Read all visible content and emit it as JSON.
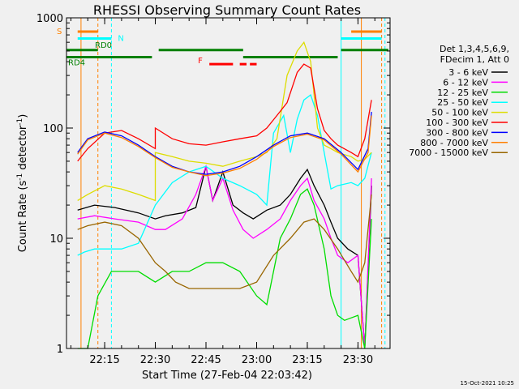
{
  "chart_data": {
    "type": "line",
    "title": "RHESSI Observing Summary Count Rates",
    "xlabel": "Start Time (27-Feb-04 22:03:42)",
    "ylabel_prefix": "Count Rate (s",
    "ylabel_exp": "-1",
    "ylabel_mid": " detector",
    "ylabel_suffix": ")",
    "y_scale": "log",
    "ylim": [
      1,
      1000
    ],
    "xlim": [
      "22:03:42",
      "23:39:30"
    ],
    "x_ticks": [
      "22:15",
      "22:30",
      "22:45",
      "23:00",
      "23:15",
      "23:30"
    ],
    "y_ticks": [
      "1",
      "10",
      "100",
      "1000"
    ],
    "grid": false,
    "info_lines": [
      "Det 1,3,4,5,6,9,",
      "FDecim 1, Att 0"
    ],
    "footer": "15-Oct-2021 10:25",
    "series": [
      {
        "name": "3 - 6 keV",
        "color": "#000000",
        "x": [
          "22:07",
          "22:12",
          "22:18",
          "22:25",
          "22:30",
          "22:33",
          "22:38",
          "22:42",
          "22:45",
          "22:47",
          "22:50",
          "22:53",
          "22:56",
          "22:59",
          "23:03",
          "23:07",
          "23:10",
          "23:13",
          "23:15",
          "23:17",
          "23:20",
          "23:22",
          "23:24",
          "23:27",
          "23:30",
          "23:32",
          "23:34"
        ],
        "values": [
          18,
          20,
          19,
          17,
          15,
          16,
          17,
          19,
          45,
          22,
          40,
          20,
          17,
          15,
          18,
          20,
          25,
          35,
          42,
          30,
          20,
          14,
          10,
          8,
          7,
          1,
          30
        ]
      },
      {
        "name": "6 - 12 keV",
        "color": "#ff00ff",
        "x": [
          "22:07",
          "22:12",
          "22:18",
          "22:25",
          "22:30",
          "22:33",
          "22:38",
          "22:42",
          "22:45",
          "22:47",
          "22:50",
          "22:53",
          "22:56",
          "22:59",
          "23:03",
          "23:07",
          "23:10",
          "23:13",
          "23:15",
          "23:17",
          "23:20",
          "23:22",
          "23:24",
          "23:27",
          "23:30",
          "23:32",
          "23:34"
        ],
        "values": [
          15,
          16,
          15,
          14,
          12,
          12,
          15,
          25,
          45,
          22,
          35,
          18,
          12,
          10,
          12,
          15,
          22,
          30,
          35,
          22,
          15,
          10,
          7,
          6,
          7,
          1,
          35
        ]
      },
      {
        "name": "12 - 25 keV",
        "color": "#00dd00",
        "x": [
          "22:07",
          "22:10",
          "22:13",
          "22:17",
          "22:25",
          "22:30",
          "22:35",
          "22:40",
          "22:45",
          "22:50",
          "22:55",
          "23:00",
          "23:03",
          "23:07",
          "23:10",
          "23:13",
          "23:15",
          "23:17",
          "23:20",
          "23:22",
          "23:24",
          "23:26",
          "23:30",
          "23:32",
          "23:34"
        ],
        "values": [
          1,
          1,
          3,
          5,
          5,
          4,
          5,
          5,
          6,
          6,
          5,
          3,
          2.5,
          10,
          15,
          25,
          28,
          20,
          8,
          3,
          2,
          1.8,
          2,
          1,
          15
        ]
      },
      {
        "name": "25 - 50 keV",
        "color": "#00ffff",
        "x": [
          "22:07",
          "22:09",
          "22:12",
          "22:15",
          "22:20",
          "22:25",
          "22:30",
          "22:35",
          "22:40",
          "22:45",
          "22:50",
          "22:55",
          "23:00",
          "23:03",
          "23:05",
          "23:08",
          "23:10",
          "23:12",
          "23:14",
          "23:16",
          "23:18",
          "23:20",
          "23:22",
          "23:24",
          "23:28",
          "23:30",
          "23:32",
          "23:34"
        ],
        "values": [
          7,
          7.5,
          8,
          8,
          8,
          9,
          20,
          32,
          40,
          45,
          35,
          30,
          25,
          20,
          90,
          130,
          60,
          120,
          180,
          200,
          130,
          60,
          28,
          30,
          32,
          30,
          35,
          60
        ]
      },
      {
        "name": "50 - 100 keV",
        "color": "#dddd00",
        "x": [
          "22:07",
          "22:10",
          "22:15",
          "22:20",
          "22:25",
          "22:30",
          "22:30",
          "22:35",
          "22:40",
          "22:45",
          "22:50",
          "22:55",
          "23:00",
          "23:03",
          "23:06",
          "23:09",
          "23:12",
          "23:14",
          "23:16",
          "23:18",
          "23:20",
          "23:22",
          "23:24",
          "23:28",
          "23:30",
          "23:32",
          "23:34"
        ],
        "values": [
          22,
          25,
          30,
          28,
          25,
          22,
          60,
          55,
          50,
          48,
          45,
          50,
          55,
          60,
          80,
          300,
          500,
          600,
          400,
          100,
          70,
          65,
          60,
          55,
          50,
          52,
          60
        ]
      },
      {
        "name": "100 - 300 keV",
        "color": "#ff0000",
        "x": [
          "22:07",
          "22:10",
          "22:15",
          "22:20",
          "22:25",
          "22:30",
          "22:30",
          "22:35",
          "22:40",
          "22:45",
          "22:50",
          "22:55",
          "23:00",
          "23:03",
          "23:06",
          "23:09",
          "23:12",
          "23:14",
          "23:16",
          "23:18",
          "23:20",
          "23:22",
          "23:24",
          "23:28",
          "23:30",
          "23:32",
          "23:34"
        ],
        "values": [
          50,
          65,
          90,
          95,
          80,
          65,
          100,
          80,
          72,
          70,
          75,
          80,
          85,
          100,
          130,
          170,
          320,
          380,
          350,
          150,
          95,
          80,
          70,
          60,
          55,
          80,
          180
        ]
      },
      {
        "name": "300 - 800 keV",
        "color": "#0000ff",
        "x": [
          "22:07",
          "22:10",
          "22:15",
          "22:20",
          "22:25",
          "22:30",
          "22:35",
          "22:40",
          "22:45",
          "22:50",
          "22:55",
          "23:00",
          "23:05",
          "23:10",
          "23:15",
          "23:20",
          "23:25",
          "23:30",
          "23:33",
          "23:34"
        ],
        "values": [
          60,
          80,
          92,
          85,
          70,
          55,
          45,
          40,
          38,
          40,
          45,
          55,
          70,
          85,
          90,
          80,
          60,
          42,
          65,
          140
        ]
      },
      {
        "name": "800 - 7000 keV",
        "color": "#ff8000",
        "x": [
          "22:07",
          "22:10",
          "22:15",
          "22:20",
          "22:25",
          "22:30",
          "22:35",
          "22:40",
          "22:45",
          "22:50",
          "22:55",
          "23:00",
          "23:05",
          "23:10",
          "23:15",
          "23:20",
          "23:25",
          "23:30",
          "23:33",
          "23:34"
        ],
        "values": [
          58,
          78,
          90,
          82,
          68,
          54,
          44,
          40,
          37,
          39,
          43,
          52,
          68,
          82,
          88,
          78,
          58,
          40,
          60,
          130
        ]
      },
      {
        "name": "7000 - 15000 keV",
        "color": "#996600",
        "x": [
          "22:07",
          "22:10",
          "22:15",
          "22:20",
          "22:25",
          "22:30",
          "22:33",
          "22:36",
          "22:40",
          "22:45",
          "22:50",
          "22:55",
          "23:00",
          "23:05",
          "23:10",
          "23:14",
          "23:17",
          "23:20",
          "23:24",
          "23:28",
          "23:30",
          "23:32",
          "23:34"
        ],
        "values": [
          12,
          13,
          14,
          13,
          10,
          6,
          5,
          4,
          3.5,
          3.5,
          3.5,
          3.5,
          4,
          7,
          10,
          14,
          15,
          12,
          8,
          5,
          4,
          6,
          25
        ]
      }
    ],
    "annotations": {
      "orbit": [
        {
          "label": "S",
          "color": "#ff8000",
          "y": 750,
          "segments": [
            [
              "22:07",
              "22:13"
            ],
            [
              "23:28",
              "23:37"
            ]
          ]
        },
        {
          "label": "N",
          "color": "#00ffff",
          "y": 650,
          "segments": [
            [
              "22:07",
              "22:17"
            ],
            [
              "23:25",
              "23:37"
            ]
          ]
        },
        {
          "label": "F",
          "color": "#ff0000",
          "y": 380,
          "segments": [
            [
              "22:46",
              "22:53"
            ],
            [
              "22:55",
              "22:57"
            ],
            [
              "22:58",
              "23:00"
            ]
          ]
        },
        {
          "label": "RD0",
          "color": "#008000",
          "y": 510,
          "segments": [
            [
              "22:03:42",
              "22:13"
            ],
            [
              "22:31",
              "22:56"
            ],
            [
              "23:25",
              "23:39"
            ]
          ]
        },
        {
          "label": "RD4",
          "color": "#008000",
          "y": 440,
          "segments": [
            [
              "22:03:42",
              "22:29"
            ],
            [
              "22:56",
              "23:24"
            ]
          ]
        }
      ],
      "vlines": [
        {
          "time": "22:08",
          "color": "#ff8000",
          "style": "solid"
        },
        {
          "time": "22:13",
          "color": "#ff8000",
          "style": "dashed"
        },
        {
          "time": "22:17",
          "color": "#00ffff",
          "style": "dashed"
        },
        {
          "time": "23:25",
          "color": "#00ffff",
          "style": "solid"
        },
        {
          "time": "23:31",
          "color": "#ff8000",
          "style": "solid"
        },
        {
          "time": "23:38",
          "color": "#00ffff",
          "style": "dashed"
        },
        {
          "time": "23:37",
          "color": "#ff8000",
          "style": "dashed"
        }
      ]
    }
  }
}
